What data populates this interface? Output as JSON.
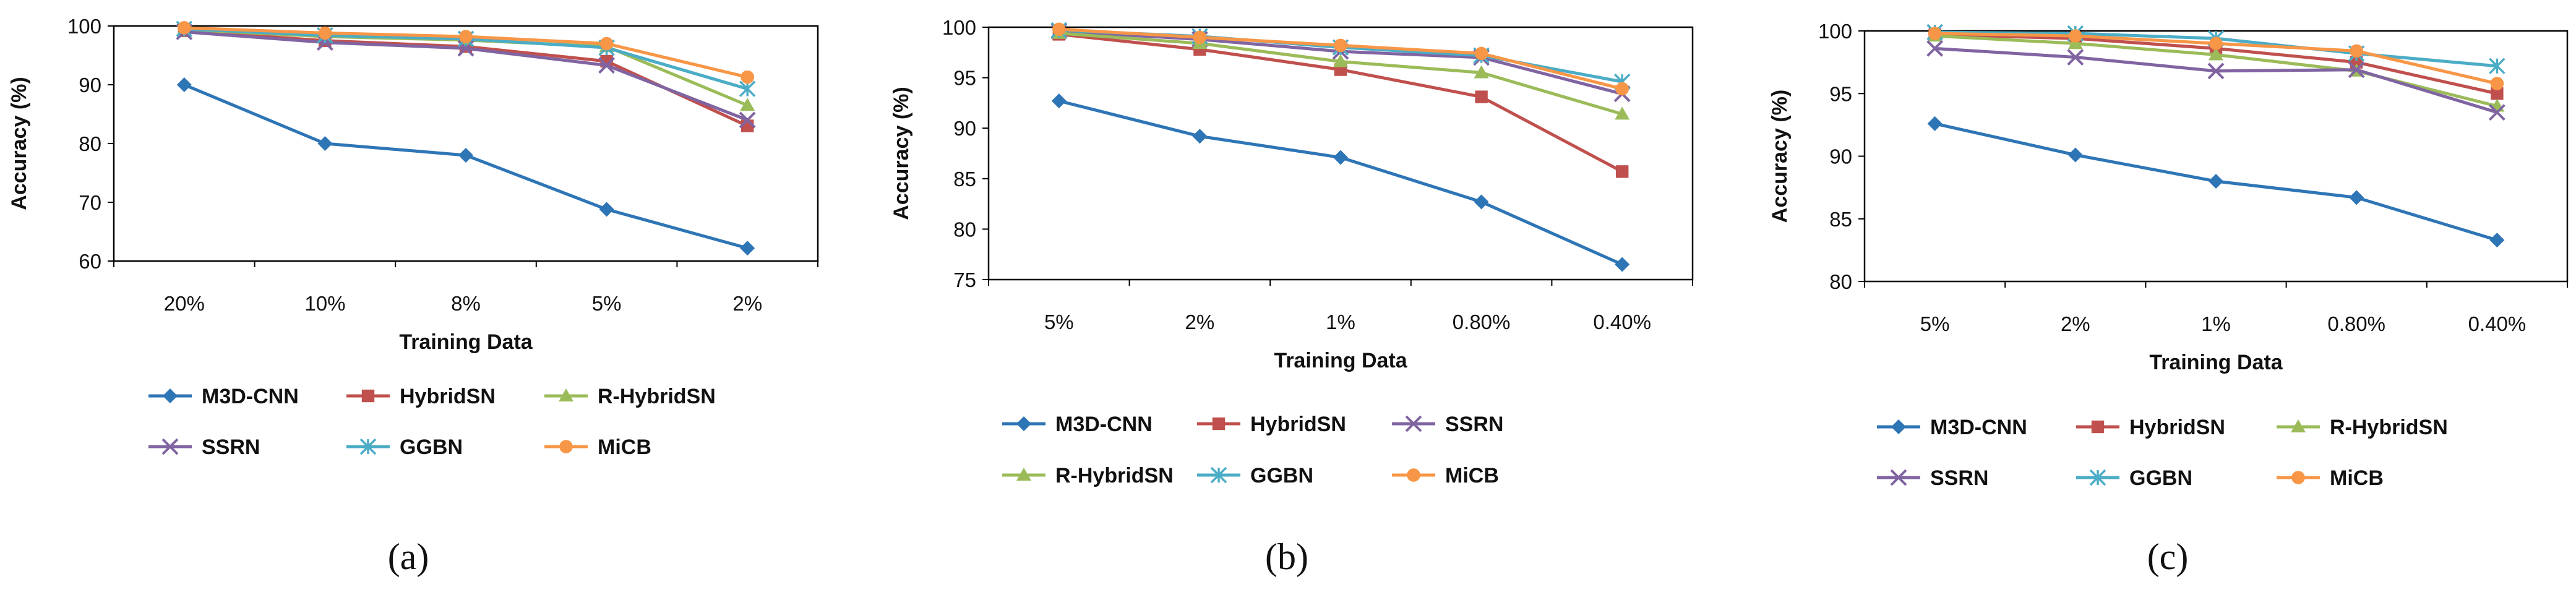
{
  "figure": {
    "panels": [
      "(a)",
      "(b)",
      "(c)"
    ]
  },
  "styles": {
    "M3D-CNN": {
      "color": "#2E75B6",
      "marker": "diamond"
    },
    "HybridSN": {
      "color": "#C0504D",
      "marker": "square"
    },
    "R-HybridSN": {
      "color": "#9BBB59",
      "marker": "triangle"
    },
    "SSRN": {
      "color": "#8064A2",
      "marker": "x"
    },
    "GGBN": {
      "color": "#4BACC6",
      "marker": "star"
    },
    "MiCB": {
      "color": "#F79646",
      "marker": "circle"
    }
  },
  "chart_data": [
    {
      "type": "line",
      "panel_label": "(a)",
      "categories": [
        "20%",
        "10%",
        "8%",
        "5%",
        "2%"
      ],
      "xlabel": "Training Data",
      "ylabel": "Accuracy (%)",
      "ylim": [
        60,
        100
      ],
      "yticks": [
        60,
        70,
        80,
        90,
        100
      ],
      "legend_order": [
        [
          "M3D-CNN",
          "HybridSN",
          "R-HybridSN"
        ],
        [
          "SSRN",
          "GGBN",
          "MiCB"
        ]
      ],
      "series": [
        {
          "name": "M3D-CNN",
          "values": [
            90.0,
            80.0,
            78.0,
            68.8,
            62.2
          ]
        },
        {
          "name": "HybridSN",
          "values": [
            99.2,
            97.5,
            96.5,
            94.0,
            83.0
          ]
        },
        {
          "name": "R-HybridSN",
          "values": [
            99.4,
            98.2,
            97.6,
            96.5,
            86.5
          ]
        },
        {
          "name": "SSRN",
          "values": [
            99.0,
            97.2,
            96.2,
            93.3,
            84.0
          ]
        },
        {
          "name": "GGBN",
          "values": [
            99.5,
            98.4,
            97.8,
            96.3,
            89.3
          ]
        },
        {
          "name": "MiCB",
          "values": [
            99.7,
            98.8,
            98.2,
            97.0,
            91.3
          ]
        }
      ]
    },
    {
      "type": "line",
      "panel_label": "(b)",
      "categories": [
        "5%",
        "2%",
        "1%",
        "0.80%",
        "0.40%"
      ],
      "xlabel": "Training Data",
      "ylabel": "Accuracy (%)",
      "ylim": [
        75,
        100
      ],
      "yticks": [
        75,
        80,
        85,
        90,
        95,
        100
      ],
      "legend_order": [
        [
          "M3D-CNN",
          "HybridSN",
          "SSRN"
        ],
        [
          "R-HybridSN",
          "GGBN",
          "MiCB"
        ]
      ],
      "series": [
        {
          "name": "M3D-CNN",
          "values": [
            92.7,
            89.2,
            87.1,
            82.7,
            76.5
          ]
        },
        {
          "name": "HybridSN",
          "values": [
            99.3,
            97.8,
            95.8,
            93.1,
            85.7
          ]
        },
        {
          "name": "SSRN",
          "values": [
            99.6,
            98.8,
            97.6,
            97.0,
            93.4
          ]
        },
        {
          "name": "R-HybridSN",
          "values": [
            99.4,
            98.4,
            96.6,
            95.5,
            91.4
          ]
        },
        {
          "name": "GGBN",
          "values": [
            99.7,
            99.1,
            98.0,
            97.2,
            94.6
          ]
        },
        {
          "name": "MiCB",
          "values": [
            99.8,
            99.0,
            98.2,
            97.4,
            93.9
          ]
        }
      ]
    },
    {
      "type": "line",
      "panel_label": "(c)",
      "categories": [
        "5%",
        "2%",
        "1%",
        "0.80%",
        "0.40%"
      ],
      "xlabel": "Training Data",
      "ylabel": "Accuracy (%)",
      "ylim": [
        80,
        100
      ],
      "yticks": [
        80,
        85,
        90,
        95,
        100
      ],
      "legend_order": [
        [
          "M3D-CNN",
          "HybridSN",
          "R-HybridSN"
        ],
        [
          "SSRN",
          "GGBN",
          "MiCB"
        ]
      ],
      "series": [
        {
          "name": "M3D-CNN",
          "values": [
            92.6,
            90.1,
            88.0,
            86.7,
            83.3
          ]
        },
        {
          "name": "HybridSN",
          "values": [
            99.7,
            99.4,
            98.6,
            97.5,
            95.0
          ]
        },
        {
          "name": "R-HybridSN",
          "values": [
            99.6,
            99.0,
            98.1,
            96.8,
            94.0
          ]
        },
        {
          "name": "SSRN",
          "values": [
            98.6,
            97.9,
            96.8,
            96.9,
            93.5
          ]
        },
        {
          "name": "GGBN",
          "values": [
            99.9,
            99.8,
            99.4,
            98.2,
            97.2
          ]
        },
        {
          "name": "MiCB",
          "values": [
            99.8,
            99.6,
            99.0,
            98.4,
            95.8
          ]
        }
      ]
    }
  ]
}
